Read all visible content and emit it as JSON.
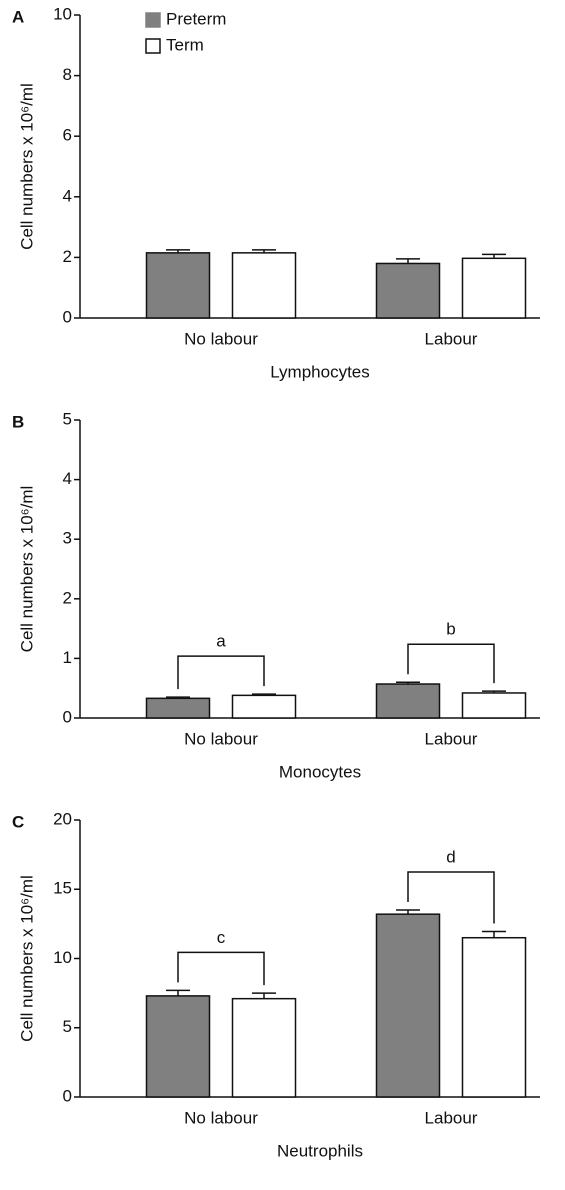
{
  "chart_data": [
    {
      "type": "bar",
      "panel": "A",
      "xlabel": "Lymphocytes",
      "ylabel": "Cell numbers x 10⁶/ml",
      "categories": [
        "No labour",
        "Labour"
      ],
      "series": [
        {
          "name": "Preterm",
          "color": "#808080",
          "values": [
            2.15,
            1.8
          ],
          "errors": [
            0.1,
            0.15
          ]
        },
        {
          "name": "Term",
          "color": "#ffffff",
          "values": [
            2.15,
            1.97
          ],
          "errors": [
            0.1,
            0.13
          ]
        }
      ],
      "ylim": [
        0,
        10
      ],
      "yticks": [
        0,
        2,
        4,
        6,
        8,
        10
      ],
      "legend": "upper left"
    },
    {
      "type": "bar",
      "panel": "B",
      "xlabel": "Monocytes",
      "ylabel": "Cell numbers x 10⁶/ml",
      "categories": [
        "No labour",
        "Labour"
      ],
      "series": [
        {
          "color": "#808080",
          "values": [
            0.33,
            0.57
          ],
          "errors": [
            0.02,
            0.03
          ]
        },
        {
          "color": "#ffffff",
          "values": [
            0.38,
            0.42
          ],
          "errors": [
            0.02,
            0.03
          ]
        }
      ],
      "ylim": [
        0,
        5
      ],
      "yticks": [
        0,
        1,
        2,
        3,
        4,
        5
      ],
      "annotations": [
        {
          "text": "a",
          "category": "No labour"
        },
        {
          "text": "b",
          "category": "Labour"
        }
      ]
    },
    {
      "type": "bar",
      "panel": "C",
      "xlabel": "Neutrophils",
      "ylabel": "Cell numbers x 10⁶/ml",
      "categories": [
        "No labour",
        "Labour"
      ],
      "series": [
        {
          "color": "#808080",
          "values": [
            7.3,
            13.2
          ],
          "errors": [
            0.4,
            0.3
          ]
        },
        {
          "color": "#ffffff",
          "values": [
            7.1,
            11.5
          ],
          "errors": [
            0.4,
            0.45
          ]
        }
      ],
      "ylim": [
        0,
        20
      ],
      "yticks": [
        0,
        5,
        10,
        15,
        20
      ],
      "annotations": [
        {
          "text": "c",
          "category": "No labour"
        },
        {
          "text": "d",
          "category": "Labour"
        }
      ]
    }
  ]
}
